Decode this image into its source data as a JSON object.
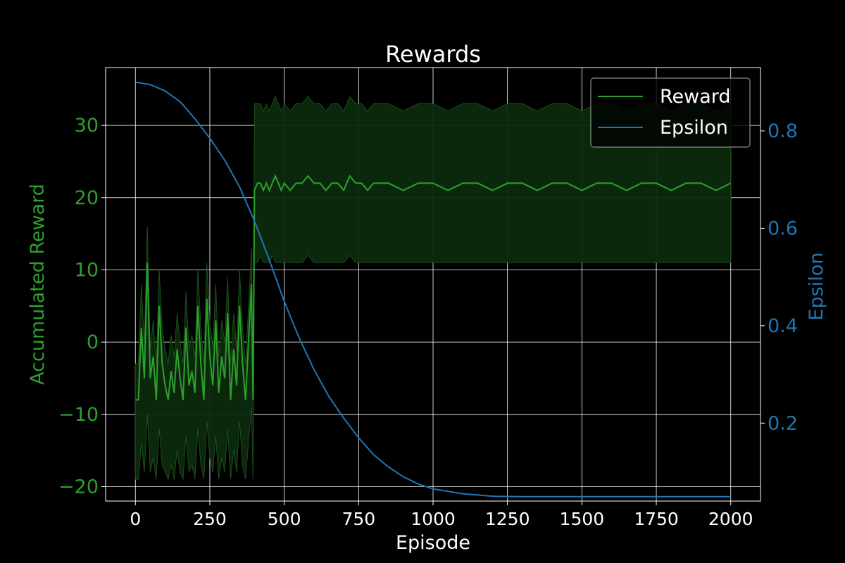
{
  "chart_data": {
    "type": "line",
    "title": "Rewards",
    "xlabel": "Episode",
    "ylabel_left": "Accumulated Reward",
    "ylabel_right": "Epsilon",
    "xlim": [
      -100,
      2100
    ],
    "ylim_left": [
      -22,
      38
    ],
    "ylim_right": [
      0.04,
      0.93
    ],
    "xticks": [
      0,
      250,
      500,
      750,
      1000,
      1250,
      1500,
      1750,
      2000
    ],
    "yticks_left": [
      -20,
      -10,
      0,
      10,
      20,
      30
    ],
    "yticks_right": [
      0.2,
      0.4,
      0.6,
      0.8
    ],
    "grid": true,
    "legend_placement": "top-right",
    "colors": {
      "reward": "#2ca02c",
      "reward_band": "#0d2a0d",
      "epsilon": "#1f77b4",
      "background": "#000000",
      "axes": "#ffffff"
    },
    "legend": [
      "Reward",
      "Epsilon"
    ],
    "series": [
      {
        "name": "Reward",
        "axis": "left",
        "x": [
          0,
          10,
          20,
          30,
          40,
          50,
          60,
          70,
          80,
          90,
          100,
          110,
          120,
          130,
          140,
          150,
          160,
          170,
          180,
          190,
          200,
          210,
          220,
          230,
          240,
          250,
          260,
          270,
          280,
          290,
          300,
          310,
          320,
          330,
          340,
          350,
          360,
          370,
          380,
          390,
          395,
          400,
          410,
          420,
          430,
          440,
          450,
          460,
          470,
          480,
          490,
          500,
          520,
          540,
          560,
          580,
          600,
          620,
          640,
          660,
          680,
          700,
          720,
          740,
          760,
          780,
          800,
          850,
          900,
          950,
          1000,
          1050,
          1100,
          1150,
          1200,
          1250,
          1300,
          1350,
          1400,
          1450,
          1500,
          1550,
          1600,
          1650,
          1700,
          1750,
          1800,
          1850,
          1900,
          1950,
          2000
        ],
        "y": [
          -8,
          -8,
          2,
          -5,
          11,
          -5,
          -2,
          -8,
          5,
          -3,
          -6,
          -8,
          -4,
          -7,
          -1,
          -5,
          -8,
          2,
          -6,
          -4,
          -7,
          5,
          -3,
          -8,
          6,
          -2,
          -6,
          3,
          -7,
          -2,
          -5,
          4,
          -8,
          -1,
          -6,
          5,
          -3,
          -8,
          0,
          8,
          -8,
          21,
          22,
          22,
          21,
          22,
          21,
          22,
          23,
          22,
          21,
          22,
          21,
          22,
          22,
          23,
          22,
          22,
          21,
          22,
          22,
          21,
          23,
          22,
          22,
          21,
          22,
          22,
          21,
          22,
          22,
          21,
          22,
          22,
          21,
          22,
          22,
          21,
          22,
          22,
          21,
          22,
          22,
          21,
          22,
          22,
          21,
          22,
          22,
          21,
          22
        ],
        "upper": [
          -3,
          -3,
          8,
          0,
          16,
          -1,
          3,
          -3,
          10,
          2,
          -1,
          -3,
          1,
          -2,
          4,
          0,
          -3,
          7,
          -1,
          1,
          -2,
          10,
          2,
          -3,
          11,
          3,
          -1,
          8,
          -2,
          3,
          0,
          9,
          -3,
          4,
          -1,
          10,
          2,
          -3,
          5,
          13,
          -3,
          33,
          33,
          33,
          32,
          33,
          32,
          33,
          34,
          33,
          32,
          33,
          32,
          33,
          33,
          34,
          33,
          33,
          32,
          33,
          33,
          32,
          34,
          33,
          33,
          32,
          33,
          33,
          32,
          33,
          33,
          32,
          33,
          33,
          32,
          33,
          33,
          32,
          33,
          33,
          32,
          33,
          33,
          32,
          33,
          33,
          32,
          33,
          33,
          32,
          33
        ],
        "lower": [
          -19,
          -19,
          -14,
          -18,
          -10,
          -18,
          -16,
          -19,
          -12,
          -17,
          -18,
          -19,
          -17,
          -19,
          -15,
          -18,
          -19,
          -13,
          -18,
          -17,
          -19,
          -12,
          -17,
          -19,
          -11,
          -16,
          -18,
          -13,
          -19,
          -16,
          -18,
          -12,
          -19,
          -15,
          -18,
          -11,
          -17,
          -19,
          -14,
          -9,
          -19,
          11,
          11,
          12,
          11,
          11,
          11,
          12,
          11,
          11,
          11,
          11,
          11,
          11,
          11,
          12,
          11,
          11,
          11,
          11,
          11,
          11,
          12,
          11,
          11,
          11,
          11,
          11,
          11,
          11,
          11,
          11,
          11,
          11,
          11,
          11,
          11,
          11,
          11,
          11,
          11,
          11,
          11,
          11,
          11,
          11,
          11,
          11,
          11,
          11,
          11
        ]
      },
      {
        "name": "Epsilon",
        "axis": "right",
        "x": [
          0,
          50,
          100,
          150,
          200,
          250,
          300,
          350,
          400,
          450,
          500,
          550,
          600,
          650,
          700,
          750,
          800,
          850,
          900,
          950,
          1000,
          1100,
          1200,
          1300,
          1400,
          1500,
          1600,
          1700,
          1800,
          1900,
          2000
        ],
        "y": [
          0.9,
          0.895,
          0.882,
          0.86,
          0.825,
          0.785,
          0.74,
          0.685,
          0.615,
          0.535,
          0.45,
          0.375,
          0.31,
          0.255,
          0.21,
          0.17,
          0.135,
          0.11,
          0.09,
          0.075,
          0.065,
          0.055,
          0.05,
          0.049,
          0.049,
          0.049,
          0.049,
          0.049,
          0.049,
          0.049,
          0.049
        ]
      }
    ]
  }
}
